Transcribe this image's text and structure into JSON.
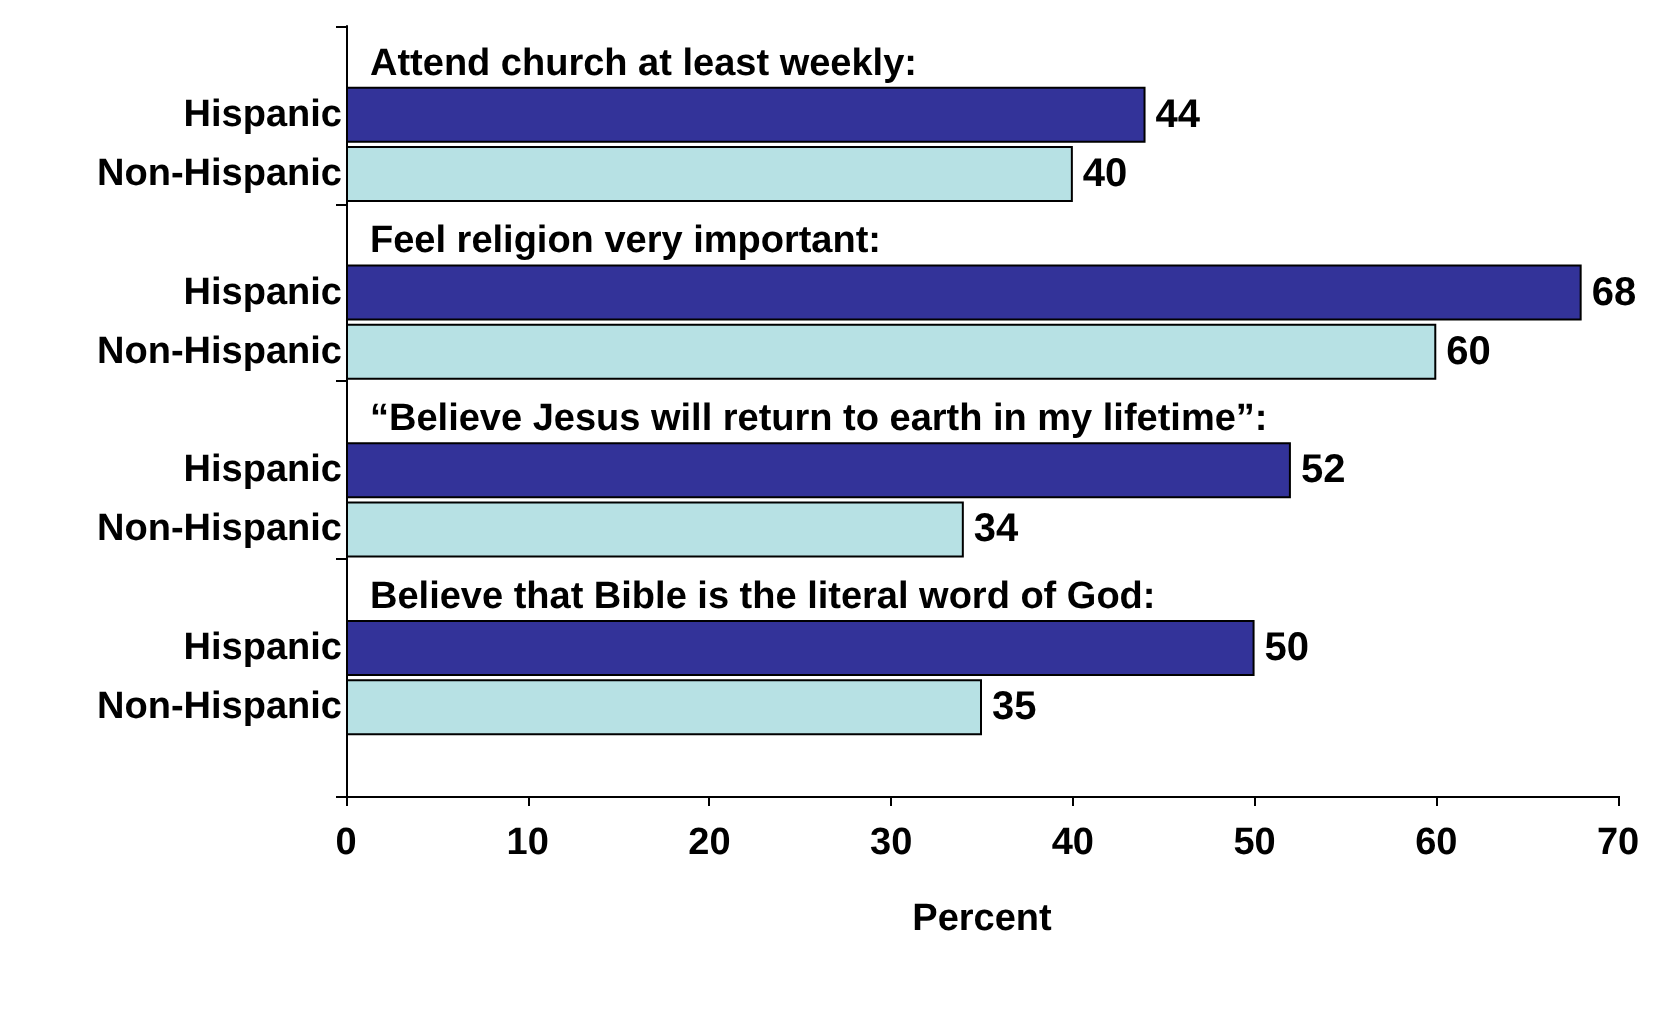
{
  "chart_data": {
    "type": "bar",
    "orientation": "horizontal",
    "categories": [
      "Hispanic",
      "Non-Hispanic",
      "Hispanic",
      "Non-Hispanic",
      "Hispanic",
      "Non-Hispanic",
      "Hispanic",
      "Non-Hispanic"
    ],
    "values": [
      44,
      40,
      68,
      60,
      52,
      34,
      50,
      35
    ],
    "colors": [
      "#333399",
      "#b7e1e4",
      "#333399",
      "#b7e1e4",
      "#333399",
      "#b7e1e4",
      "#333399",
      "#b7e1e4"
    ],
    "annotations": [
      "Attend church at least weekly:",
      "Feel religion very important:",
      "“Believe Jesus will return to earth in my lifetime”:",
      "Believe that Bible is the literal word of God:"
    ],
    "xlim": [
      0,
      70
    ],
    "xticks": [
      0,
      10,
      20,
      30,
      40,
      50,
      60,
      70
    ],
    "xlabel": "Percent",
    "data_labels": true,
    "grid": false
  }
}
